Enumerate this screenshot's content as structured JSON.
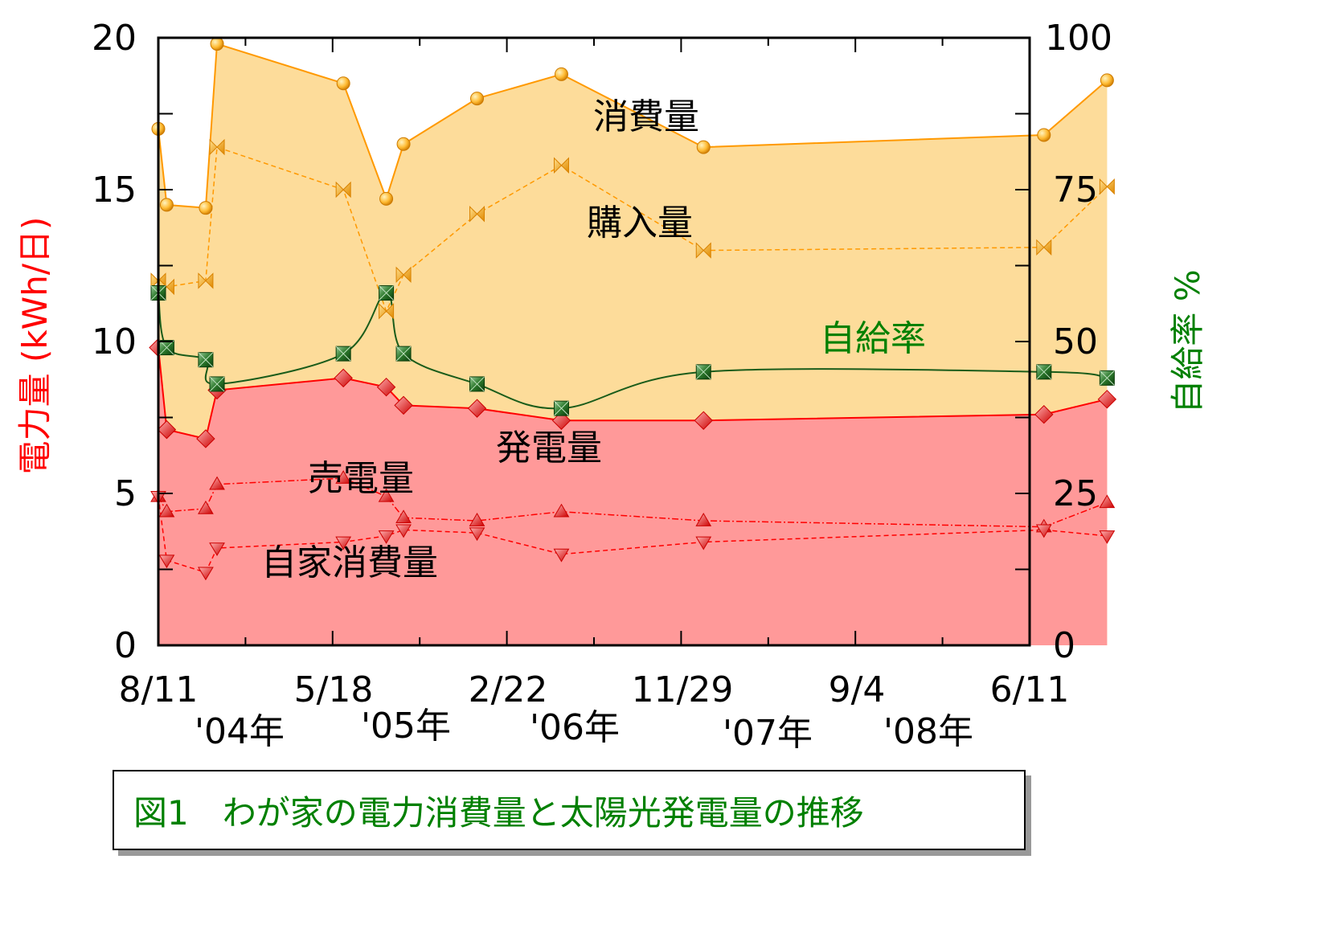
{
  "chart_data": {
    "type": "area",
    "caption": "図1　わが家の電力消費量と太陽光発電量の推移",
    "y_left_label": "電力量 (kWh/日)",
    "y_right_label": "自給率 %",
    "y_left_ticks": [
      "0",
      "5",
      "10",
      "15",
      "20"
    ],
    "y_right_ticks": [
      "0",
      "25",
      "50",
      "75",
      "100"
    ],
    "ylim_left": [
      0,
      20
    ],
    "ylim_right": [
      0,
      100
    ],
    "x_date_ticks": [
      "8/11",
      "5/18",
      "2/22",
      "11/29",
      "9/4",
      "6/11"
    ],
    "x_year_labels": [
      "'04年",
      "'05年",
      "'06年",
      "'07年",
      "'08年"
    ],
    "x": [
      "2003-08-11",
      "2003-08-28",
      "2003-11-15",
      "2003-12-08",
      "2004-08-20",
      "2004-11-15",
      "2004-12-20",
      "2005-05-18",
      "2005-11-05",
      "2006-08-20",
      "2008-07-10",
      "2008-11-15"
    ],
    "annotations": {
      "consumption": "消費量",
      "purchase": "購入量",
      "self_sufficiency": "自給率",
      "generation": "発電量",
      "sold": "売電量",
      "self_consumption": "自家消費量"
    },
    "series": [
      {
        "key": "consumption",
        "color": "#ff9900",
        "values": [
          17.0,
          14.5,
          14.4,
          19.8,
          18.5,
          14.7,
          16.5,
          18.0,
          18.8,
          16.4,
          16.8,
          18.6
        ]
      },
      {
        "key": "purchase",
        "color": "#ff9900",
        "values": [
          12.0,
          11.8,
          12.0,
          16.4,
          15.0,
          11.0,
          12.2,
          14.2,
          15.8,
          13.0,
          13.1,
          15.1
        ]
      },
      {
        "key": "generation",
        "color": "#ff0000",
        "values": [
          9.8,
          7.1,
          6.8,
          8.4,
          8.8,
          8.5,
          7.9,
          7.8,
          7.4,
          7.4,
          7.6,
          8.1
        ]
      },
      {
        "key": "sold",
        "color": "#ff0000",
        "values": [
          4.9,
          4.4,
          4.5,
          5.3,
          5.5,
          4.9,
          4.2,
          4.1,
          4.4,
          4.1,
          3.9,
          4.7
        ]
      },
      {
        "key": "self_consumption",
        "color": "#ff0000",
        "values": [
          4.9,
          2.8,
          2.4,
          3.2,
          3.4,
          3.6,
          3.8,
          3.7,
          3.0,
          3.4,
          3.8,
          3.6
        ]
      },
      {
        "key": "self_sufficiency",
        "axis": "right",
        "color": "#008000",
        "values": [
          58,
          49,
          47,
          43,
          48,
          58,
          48,
          43,
          39,
          45,
          45,
          44
        ]
      }
    ],
    "grid": false
  }
}
